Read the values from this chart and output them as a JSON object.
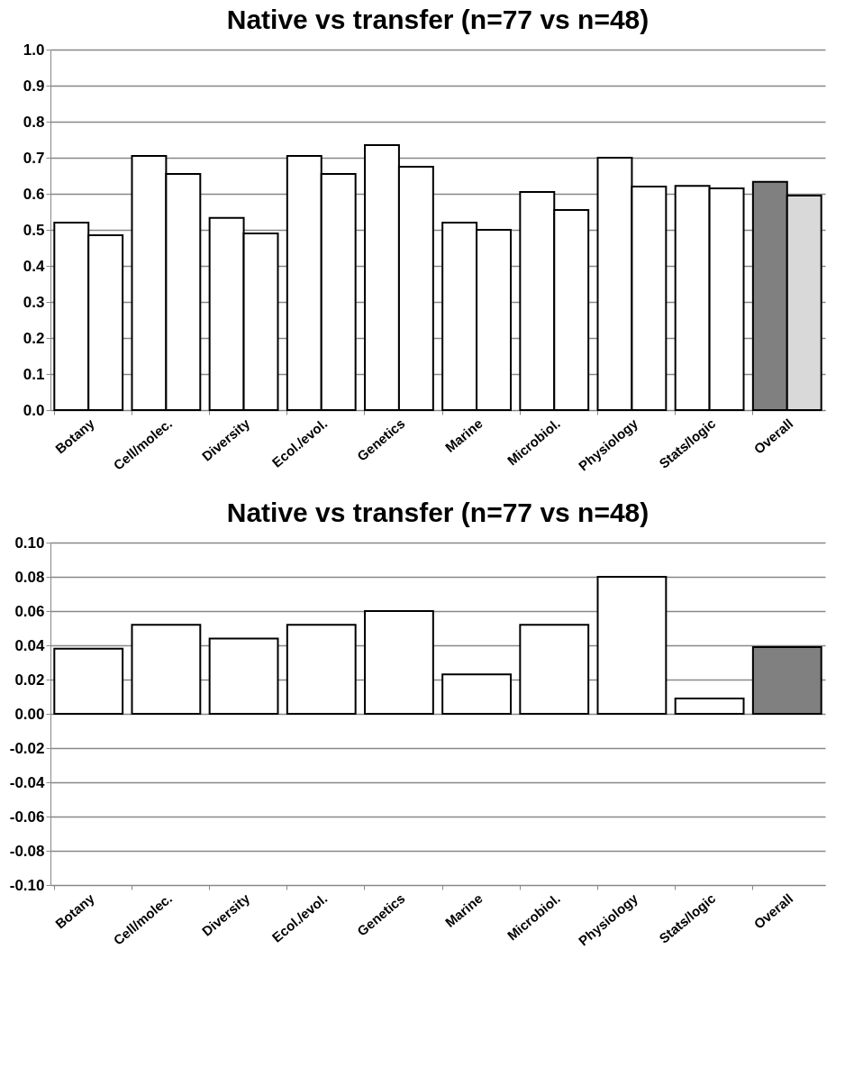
{
  "chart_data": [
    {
      "type": "bar",
      "title": "Native vs transfer (n=77 vs n=48)",
      "categories": [
        "Botany",
        "Cell/molec.",
        "Diversity",
        "Ecol./evol.",
        "Genetics",
        "Marine",
        "Microbiol.",
        "Physiology",
        "Stats/logic",
        "Overall"
      ],
      "series": [
        {
          "colors": [
            "#ffffff",
            "#ffffff",
            "#ffffff",
            "#ffffff",
            "#ffffff",
            "#ffffff",
            "#ffffff",
            "#ffffff",
            "#ffffff",
            "#808080"
          ],
          "values": [
            0.52,
            0.705,
            0.533,
            0.705,
            0.735,
            0.52,
            0.605,
            0.7,
            0.622,
            0.633
          ]
        },
        {
          "colors": [
            "#ffffff",
            "#ffffff",
            "#ffffff",
            "#ffffff",
            "#ffffff",
            "#ffffff",
            "#ffffff",
            "#ffffff",
            "#ffffff",
            "#d9d9d9"
          ],
          "values": [
            0.485,
            0.655,
            0.49,
            0.655,
            0.675,
            0.5,
            0.555,
            0.62,
            0.615,
            0.595
          ]
        }
      ],
      "ylim": [
        0,
        1
      ],
      "yticks": [
        {
          "value": 0,
          "label": "0.0"
        },
        {
          "value": 0.1,
          "label": "0.1"
        },
        {
          "value": 0.2,
          "label": "0.2"
        },
        {
          "value": 0.3,
          "label": "0.3"
        },
        {
          "value": 0.4,
          "label": "0.4"
        },
        {
          "value": 0.5,
          "label": "0.5"
        },
        {
          "value": 0.6,
          "label": "0.6"
        },
        {
          "value": 0.7,
          "label": "0.7"
        },
        {
          "value": 0.8,
          "label": "0.8"
        },
        {
          "value": 0.9,
          "label": "0.9"
        },
        {
          "value": 1,
          "label": "1.0"
        }
      ],
      "grid": "y"
    },
    {
      "type": "bar",
      "title": "Native vs transfer (n=77 vs n=48)",
      "categories": [
        "Botany",
        "Cell/molec.",
        "Diversity",
        "Ecol./evol.",
        "Genetics",
        "Marine",
        "Microbiol.",
        "Physiology",
        "Stats/logic",
        "Overall"
      ],
      "series": [
        {
          "colors": [
            "#ffffff",
            "#ffffff",
            "#ffffff",
            "#ffffff",
            "#ffffff",
            "#ffffff",
            "#ffffff",
            "#ffffff",
            "#ffffff",
            "#808080"
          ],
          "values": [
            0.038,
            0.052,
            0.044,
            0.052,
            0.06,
            0.023,
            0.052,
            0.08,
            0.009,
            0.039
          ]
        }
      ],
      "ylim": [
        -0.1,
        0.1
      ],
      "yticks": [
        {
          "value": -0.1,
          "label": "-0.10"
        },
        {
          "value": -0.08,
          "label": "-0.08"
        },
        {
          "value": -0.06,
          "label": "-0.06"
        },
        {
          "value": -0.04,
          "label": "-0.04"
        },
        {
          "value": -0.02,
          "label": "-0.02"
        },
        {
          "value": 0,
          "label": "0.00"
        },
        {
          "value": 0.02,
          "label": "0.02"
        },
        {
          "value": 0.04,
          "label": "0.04"
        },
        {
          "value": 0.06,
          "label": "0.06"
        },
        {
          "value": 0.08,
          "label": "0.08"
        },
        {
          "value": 0.1,
          "label": "0.10"
        }
      ],
      "grid": "y"
    }
  ]
}
